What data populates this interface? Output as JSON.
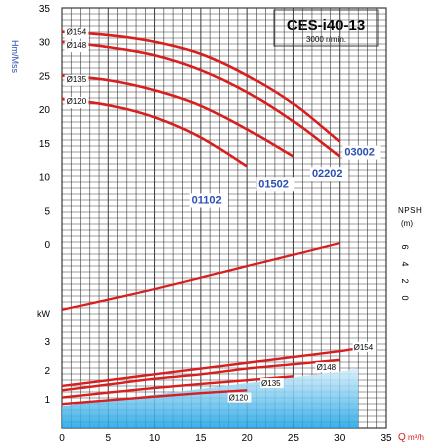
{
  "chart_data": [
    {
      "type": "line",
      "panel": "head",
      "title": "CES-i40-13",
      "subtitle": "3000 r/min.",
      "ylabel": "Hm/Mss",
      "xlim": [
        0,
        35
      ],
      "ylim": [
        0,
        35
      ],
      "y_ticks": [
        "35",
        "30",
        "25",
        "20",
        "15",
        "10",
        "5",
        "0"
      ],
      "grid": true,
      "series": [
        {
          "name": "Ø154",
          "x": [
            0,
            5,
            10,
            15,
            20,
            25,
            30
          ],
          "y": [
            31.5,
            31.0,
            30.0,
            28.2,
            25.0,
            20.8,
            15.2
          ]
        },
        {
          "name": "Ø148",
          "x": [
            0,
            5,
            10,
            15,
            20,
            25,
            30
          ],
          "y": [
            30.0,
            29.2,
            28.0,
            25.8,
            22.5,
            18.2,
            13.0
          ]
        },
        {
          "name": "Ø135",
          "x": [
            0,
            5,
            10,
            15,
            20,
            25
          ],
          "y": [
            25.0,
            24.3,
            22.8,
            20.5,
            17.0,
            13.0
          ]
        },
        {
          "name": "Ø120",
          "x": [
            0,
            5,
            10,
            15,
            20
          ],
          "y": [
            21.5,
            20.6,
            18.8,
            15.8,
            11.5
          ]
        }
      ],
      "annotations": [
        "0154",
        "0148",
        "0135",
        "0120",
        "03002",
        "02202",
        "01502",
        "01102"
      ]
    },
    {
      "type": "line",
      "panel": "npsh",
      "ylabel": "NPSH (m)",
      "y_ticks": [
        "6",
        "4",
        "2",
        "0"
      ],
      "ylim": [
        0,
        6
      ],
      "series": [
        {
          "name": "NPSH",
          "x": [
            0,
            10,
            20,
            30
          ],
          "y": [
            0.2,
            2.2,
            4.4,
            6.6
          ]
        }
      ]
    },
    {
      "type": "line",
      "panel": "power",
      "ylabel": "kW",
      "xlabel": "Q m³/h",
      "x_ticks": [
        "0",
        "5",
        "10",
        "15",
        "20",
        "25",
        "30",
        "35"
      ],
      "y_ticks": [
        "3",
        "2",
        "1"
      ],
      "xlim": [
        0,
        35
      ],
      "ylim": [
        0,
        4
      ],
      "series": [
        {
          "name": "Ø154",
          "x": [
            0,
            5,
            10,
            15,
            20,
            25,
            30,
            32
          ],
          "y": [
            1.45,
            1.65,
            1.85,
            2.05,
            2.25,
            2.45,
            2.65,
            2.75
          ]
        },
        {
          "name": "Ø148",
          "x": [
            0,
            5,
            10,
            15,
            20,
            25,
            30
          ],
          "y": [
            1.3,
            1.5,
            1.7,
            1.85,
            2.05,
            2.2,
            2.35
          ]
        },
        {
          "name": "Ø135",
          "x": [
            0,
            5,
            10,
            15,
            20,
            25
          ],
          "y": [
            1.05,
            1.22,
            1.38,
            1.52,
            1.65,
            1.78
          ]
        },
        {
          "name": "Ø120",
          "x": [
            0,
            5,
            10,
            15,
            20
          ],
          "y": [
            0.82,
            0.95,
            1.08,
            1.2,
            1.3
          ]
        }
      ]
    }
  ],
  "labels": {
    "hm": "Hm/Mss",
    "title": "CES-i40-13",
    "speed": "3000 r/min.",
    "npsh": "NPSH",
    "npsh_unit": "(m)",
    "kw": "kW",
    "q": "Q",
    "q_unit": "m³/h",
    "npsh_ticks": [
      "6",
      "4",
      "2",
      "0"
    ]
  },
  "colors": {
    "curve": "#d81e1e",
    "label": "#2a4fb0",
    "grid": "#3a3a3a",
    "shade_top": "#1aa3e6",
    "shade_bottom": "#ffffff"
  }
}
